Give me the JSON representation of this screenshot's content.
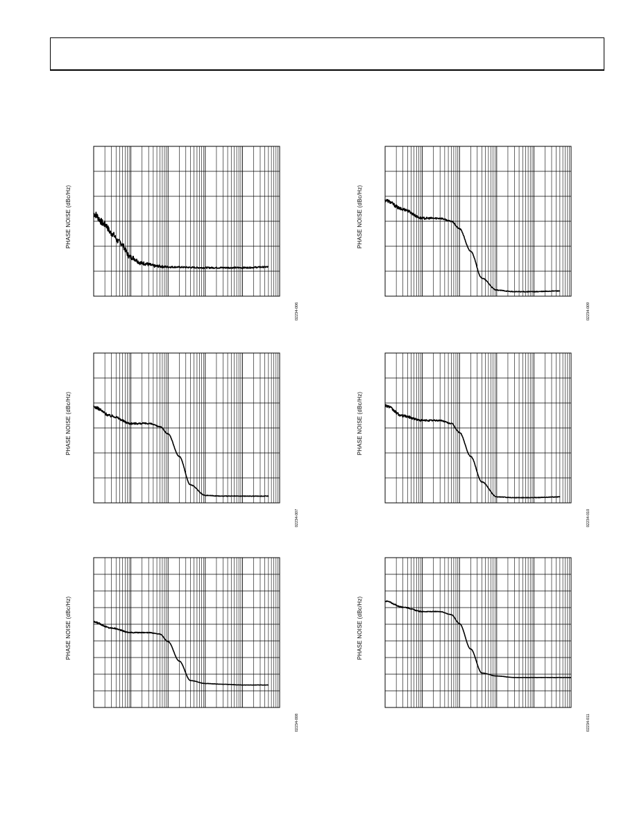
{
  "page": {
    "header_text": ""
  },
  "chart_data": [
    {
      "type": "line",
      "ylabel": "PHASE NOISE (dBc/Hz)",
      "xlabel": "",
      "x_scale": "log",
      "x_decades": 5,
      "y_divisions": 6,
      "figure_id": "02234-006",
      "series": [
        {
          "x": [
            1,
            2,
            3,
            5,
            10,
            20,
            50,
            100,
            1000,
            10000,
            50000
          ],
          "y": [
            0.55,
            0.48,
            0.42,
            0.36,
            0.26,
            0.22,
            0.2,
            0.195,
            0.19,
            0.19,
            0.195
          ]
        }
      ],
      "noise": 0.025
    },
    {
      "type": "line",
      "ylabel": "PHASE NOISE (dBc/Hz)",
      "xlabel": "",
      "x_scale": "log",
      "x_decades": 5,
      "y_divisions": 6,
      "figure_id": "02234-009",
      "series": [
        {
          "x": [
            1,
            3,
            10,
            30,
            60,
            100,
            200,
            400,
            1000,
            3000,
            10000,
            50000
          ],
          "y": [
            0.64,
            0.58,
            0.52,
            0.52,
            0.5,
            0.45,
            0.3,
            0.12,
            0.04,
            0.03,
            0.03,
            0.035
          ]
        }
      ],
      "noise": 0.012
    },
    {
      "type": "line",
      "ylabel": "PHASE NOISE (dBc/Hz)",
      "xlabel": "",
      "x_scale": "log",
      "x_decades": 5,
      "y_divisions": 6,
      "figure_id": "02234-007",
      "series": [
        {
          "x": [
            1,
            3,
            10,
            30,
            60,
            100,
            200,
            400,
            1000,
            3000,
            10000,
            50000
          ],
          "y": [
            0.64,
            0.58,
            0.53,
            0.53,
            0.51,
            0.46,
            0.31,
            0.12,
            0.05,
            0.045,
            0.045,
            0.045
          ]
        }
      ],
      "noise": 0.01
    },
    {
      "type": "line",
      "ylabel": "PHASE NOISE (dBc/Hz)",
      "xlabel": "",
      "x_scale": "log",
      "x_decades": 5,
      "y_divisions": 6,
      "figure_id": "02234-010",
      "series": [
        {
          "x": [
            1,
            3,
            10,
            30,
            60,
            100,
            200,
            400,
            1000,
            3000,
            10000,
            50000
          ],
          "y": [
            0.65,
            0.58,
            0.55,
            0.55,
            0.53,
            0.47,
            0.31,
            0.14,
            0.04,
            0.035,
            0.035,
            0.04
          ]
        }
      ],
      "noise": 0.01
    },
    {
      "type": "line",
      "ylabel": "PHASE NOISE (dBc/Hz)",
      "xlabel": "",
      "x_scale": "log",
      "x_decades": 5,
      "y_divisions": 9,
      "figure_id": "02234-008",
      "series": [
        {
          "x": [
            1,
            3,
            10,
            30,
            60,
            100,
            200,
            400,
            1000,
            3000,
            10000,
            50000
          ],
          "y": [
            0.57,
            0.53,
            0.5,
            0.5,
            0.49,
            0.44,
            0.31,
            0.18,
            0.16,
            0.155,
            0.15,
            0.15
          ]
        }
      ],
      "noise": 0.005
    },
    {
      "type": "line",
      "ylabel": "PHASE NOISE (dBc/Hz)",
      "xlabel": "",
      "x_scale": "log",
      "x_decades": 5,
      "y_divisions": 9,
      "figure_id": "02234-011",
      "series": [
        {
          "x": [
            1,
            3,
            10,
            30,
            60,
            100,
            200,
            400,
            1000,
            3000,
            10000,
            100000
          ],
          "y": [
            0.71,
            0.67,
            0.64,
            0.64,
            0.62,
            0.56,
            0.39,
            0.23,
            0.21,
            0.2,
            0.2,
            0.2
          ]
        }
      ],
      "noise": 0.004
    }
  ]
}
